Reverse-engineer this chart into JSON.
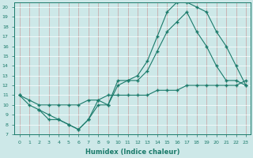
{
  "xlabel": "Humidex (Indice chaleur)",
  "xlim": [
    -0.5,
    23.5
  ],
  "ylim": [
    7,
    20.5
  ],
  "xticks": [
    0,
    1,
    2,
    3,
    4,
    5,
    6,
    7,
    8,
    9,
    10,
    11,
    12,
    13,
    14,
    15,
    16,
    17,
    18,
    19,
    20,
    21,
    22,
    23
  ],
  "yticks": [
    7,
    8,
    9,
    10,
    11,
    12,
    13,
    14,
    15,
    16,
    17,
    18,
    19,
    20
  ],
  "bg_color": "#cde8e8",
  "line_color": "#1a7a6a",
  "grid_color": "#b8d8d8",
  "line1_x": [
    0,
    1,
    2,
    3,
    4,
    5,
    6,
    7,
    8,
    9,
    10,
    11,
    12,
    13,
    14,
    15,
    16,
    17,
    18,
    19,
    20,
    21,
    22,
    23
  ],
  "line1_y": [
    11,
    10,
    9.5,
    8.5,
    8.5,
    8.0,
    7.5,
    8.5,
    10.0,
    10.0,
    12.5,
    12.5,
    13.0,
    14.5,
    17.0,
    19.5,
    20.5,
    20.5,
    20.0,
    19.5,
    17.5,
    16.0,
    14.0,
    12.0
  ],
  "line2_x": [
    2,
    3,
    4,
    5,
    6,
    7,
    8,
    9,
    10,
    11,
    12,
    13,
    14,
    15,
    16,
    17,
    18,
    19,
    20,
    21,
    22,
    23
  ],
  "line2_y": [
    9.5,
    9.0,
    8.5,
    8.0,
    7.5,
    8.5,
    10.5,
    10.0,
    12.0,
    12.5,
    12.5,
    13.5,
    15.5,
    17.5,
    18.5,
    19.5,
    17.5,
    16.0,
    14.0,
    12.5,
    12.5,
    12.0
  ],
  "line3_x": [
    0,
    1,
    2,
    3,
    4,
    5,
    6,
    7,
    8,
    9,
    10,
    11,
    12,
    13,
    14,
    15,
    16,
    17,
    18,
    19,
    20,
    21,
    22,
    23
  ],
  "line3_y": [
    11,
    10.5,
    10.0,
    10.0,
    10.0,
    10.0,
    10.0,
    10.5,
    10.5,
    11.0,
    11.0,
    11.0,
    11.0,
    11.0,
    11.5,
    11.5,
    11.5,
    12.0,
    12.0,
    12.0,
    12.0,
    12.0,
    12.0,
    12.5
  ]
}
